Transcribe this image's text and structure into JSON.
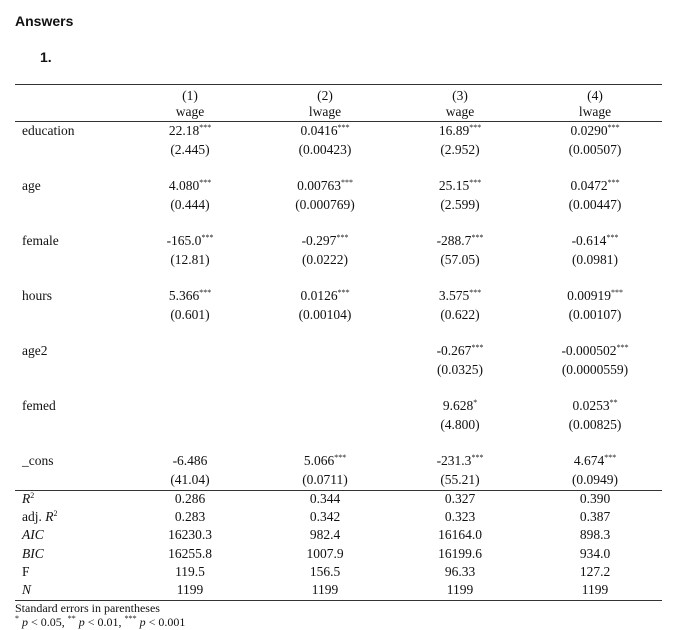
{
  "header": {
    "title": "Answers",
    "number": "1."
  },
  "table": {
    "columns": [
      {
        "num": "(1)",
        "dep": "wage"
      },
      {
        "num": "(2)",
        "dep": "lwage"
      },
      {
        "num": "(3)",
        "dep": "wage"
      },
      {
        "num": "(4)",
        "dep": "lwage"
      }
    ],
    "rows": [
      {
        "label": "education",
        "cells": [
          {
            "coef": "22.18",
            "stars": "***",
            "se": "(2.445)"
          },
          {
            "coef": "0.0416",
            "stars": "***",
            "se": "(0.00423)"
          },
          {
            "coef": "16.89",
            "stars": "***",
            "se": "(2.952)"
          },
          {
            "coef": "0.0290",
            "stars": "***",
            "se": "(0.00507)"
          }
        ]
      },
      {
        "label": "age",
        "cells": [
          {
            "coef": "4.080",
            "stars": "***",
            "se": "(0.444)"
          },
          {
            "coef": "0.00763",
            "stars": "***",
            "se": "(0.000769)"
          },
          {
            "coef": "25.15",
            "stars": "***",
            "se": "(2.599)"
          },
          {
            "coef": "0.0472",
            "stars": "***",
            "se": "(0.00447)"
          }
        ]
      },
      {
        "label": "female",
        "cells": [
          {
            "coef": "-165.0",
            "stars": "***",
            "se": "(12.81)"
          },
          {
            "coef": "-0.297",
            "stars": "***",
            "se": "(0.0222)"
          },
          {
            "coef": "-288.7",
            "stars": "***",
            "se": "(57.05)"
          },
          {
            "coef": "-0.614",
            "stars": "***",
            "se": "(0.0981)"
          }
        ]
      },
      {
        "label": "hours",
        "cells": [
          {
            "coef": "5.366",
            "stars": "***",
            "se": "(0.601)"
          },
          {
            "coef": "0.0126",
            "stars": "***",
            "se": "(0.00104)"
          },
          {
            "coef": "3.575",
            "stars": "***",
            "se": "(0.622)"
          },
          {
            "coef": "0.00919",
            "stars": "***",
            "se": "(0.00107)"
          }
        ]
      },
      {
        "label": "age2",
        "cells": [
          null,
          null,
          {
            "coef": "-0.267",
            "stars": "***",
            "se": "(0.0325)"
          },
          {
            "coef": "-0.000502",
            "stars": "***",
            "se": "(0.0000559)"
          }
        ]
      },
      {
        "label": "femed",
        "cells": [
          null,
          null,
          {
            "coef": "9.628",
            "stars": "*",
            "se": "(4.800)"
          },
          {
            "coef": "0.0253",
            "stars": "**",
            "se": "(0.00825)"
          }
        ]
      },
      {
        "label": "_cons",
        "cells": [
          {
            "coef": "-6.486",
            "se": "(41.04)"
          },
          {
            "coef": "5.066",
            "stars": "***",
            "se": "(0.0711)"
          },
          {
            "coef": "-231.3",
            "stars": "***",
            "se": "(55.21)"
          },
          {
            "coef": "4.674",
            "stars": "***",
            "se": "(0.0949)"
          }
        ]
      }
    ],
    "stats": [
      {
        "label": [
          {
            "text": "R",
            "style": "italic"
          },
          {
            "text": "2",
            "style": "sup"
          }
        ],
        "values": [
          "0.286",
          "0.344",
          "0.327",
          "0.390"
        ]
      },
      {
        "label": [
          {
            "text": "adj. "
          },
          {
            "text": "R",
            "style": "italic"
          },
          {
            "text": "2",
            "style": "sup"
          }
        ],
        "values": [
          "0.283",
          "0.342",
          "0.323",
          "0.387"
        ]
      },
      {
        "label": [
          {
            "text": "AIC",
            "style": "italic"
          }
        ],
        "values": [
          "16230.3",
          "982.4",
          "16164.0",
          "898.3"
        ]
      },
      {
        "label": [
          {
            "text": "BIC",
            "style": "italic"
          }
        ],
        "values": [
          "16255.8",
          "1007.9",
          "16199.6",
          "934.0"
        ]
      },
      {
        "label": [
          {
            "text": "F"
          }
        ],
        "values": [
          "119.5",
          "156.5",
          "96.33",
          "127.2"
        ]
      },
      {
        "label": [
          {
            "text": "N",
            "style": "italic"
          }
        ],
        "values": [
          "1199",
          "1199",
          "1199",
          "1199"
        ]
      }
    ],
    "notes": [
      [
        {
          "text": "Standard errors in parentheses"
        }
      ],
      [
        {
          "text": "*",
          "style": "sup"
        },
        {
          "text": " "
        },
        {
          "text": "p",
          "style": "italic"
        },
        {
          "text": " < 0.05, "
        },
        {
          "text": "**",
          "style": "sup"
        },
        {
          "text": " "
        },
        {
          "text": "p",
          "style": "italic"
        },
        {
          "text": " < 0.01, "
        },
        {
          "text": "***",
          "style": "sup"
        },
        {
          "text": " "
        },
        {
          "text": "p",
          "style": "italic"
        },
        {
          "text": " < 0.001"
        }
      ]
    ]
  }
}
